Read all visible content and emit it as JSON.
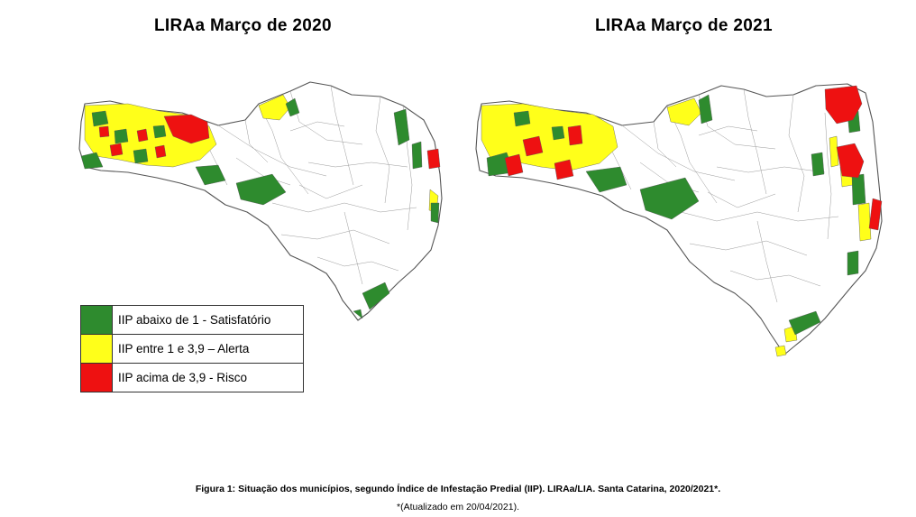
{
  "maps": [
    {
      "id": "2020",
      "title": "LIRAa Março de 2020"
    },
    {
      "id": "2021",
      "title": "LIRAa Março de 2021"
    }
  ],
  "legend": [
    {
      "key": "satisfatorio",
      "label": "IIP abaixo de 1 - Satisfatório",
      "color": "#2e8b2e"
    },
    {
      "key": "alerta",
      "label": "IIP entre 1 e 3,9 – Alerta",
      "color": "#ffff1a"
    },
    {
      "key": "risco",
      "label": "IIP acima de 3,9 - Risco",
      "color": "#ee1111"
    }
  ],
  "caption": {
    "main": "Figura 1: Situação dos municípios, segundo Índice de Infestação Predial (IIP). LIRAa/LIA. Santa Catarina, 2020/2021*.",
    "note": "*(Atualizado em 20/04/2021)."
  }
}
